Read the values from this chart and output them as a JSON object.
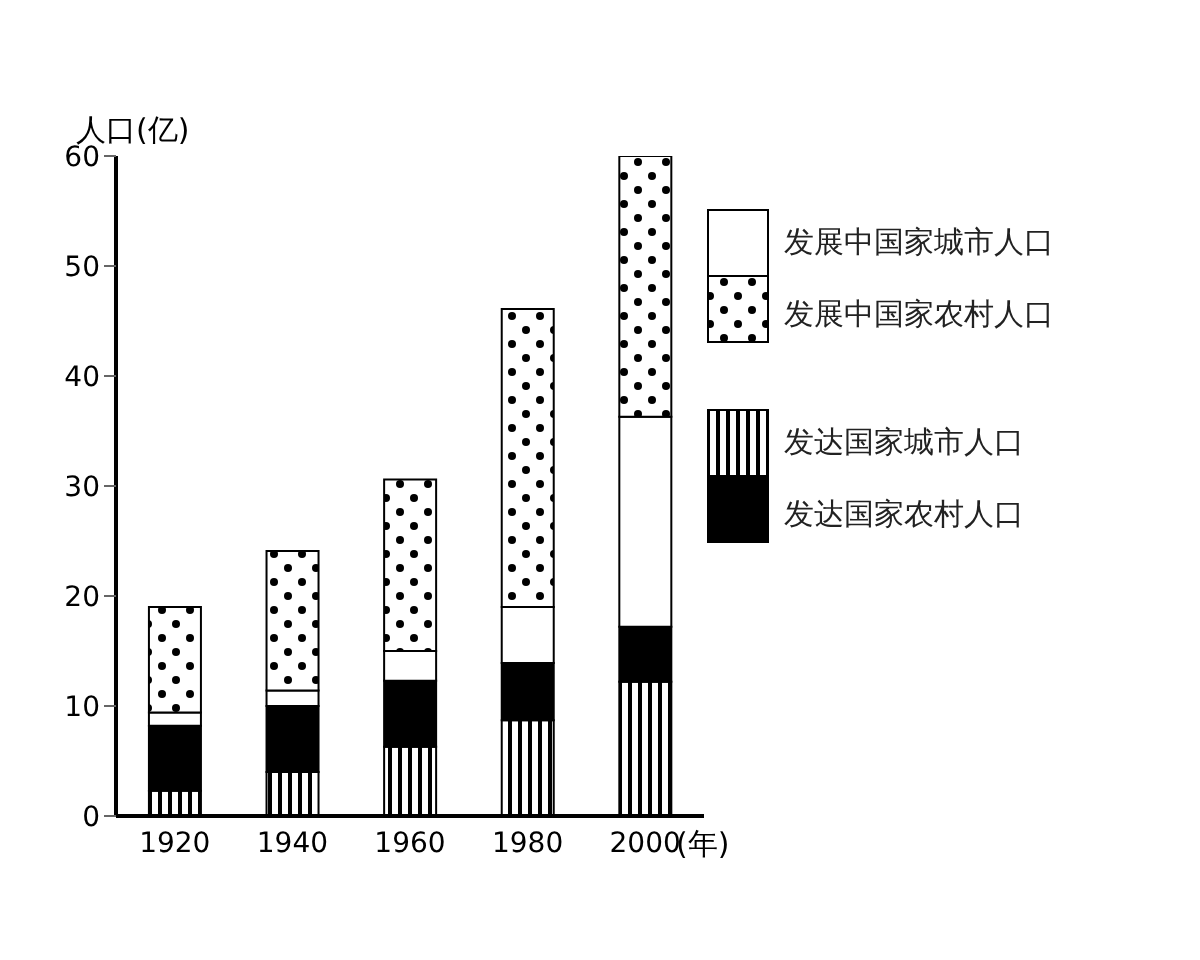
{
  "chart_data": {
    "type": "bar",
    "stacked": true,
    "ylabel": "人口(亿)",
    "xlabel": "(年)",
    "categories": [
      "1920",
      "1940",
      "1960",
      "1980",
      "2000"
    ],
    "series": [
      {
        "name": "发达国家城市人口",
        "color": "#000000",
        "values": [
          2.3,
          4.0,
          6.3,
          8.7,
          12.2
        ]
      },
      {
        "name": "发达国家农村人口",
        "color": "#000000",
        "values": [
          5.9,
          6.0,
          6.0,
          5.2,
          5.0
        ]
      },
      {
        "name": "发展中国家城市人口",
        "color": "#ffffff",
        "values": [
          1.2,
          1.4,
          2.7,
          5.1,
          19.1
        ]
      },
      {
        "name": "发展中国家农村人口",
        "color": "#000000",
        "values": [
          9.6,
          12.7,
          15.6,
          27.1,
          23.7
        ]
      }
    ],
    "ylim": [
      0,
      60
    ],
    "yticks": [
      0,
      10,
      20,
      30,
      40,
      50,
      60
    ],
    "grid": false,
    "legend": "right"
  }
}
